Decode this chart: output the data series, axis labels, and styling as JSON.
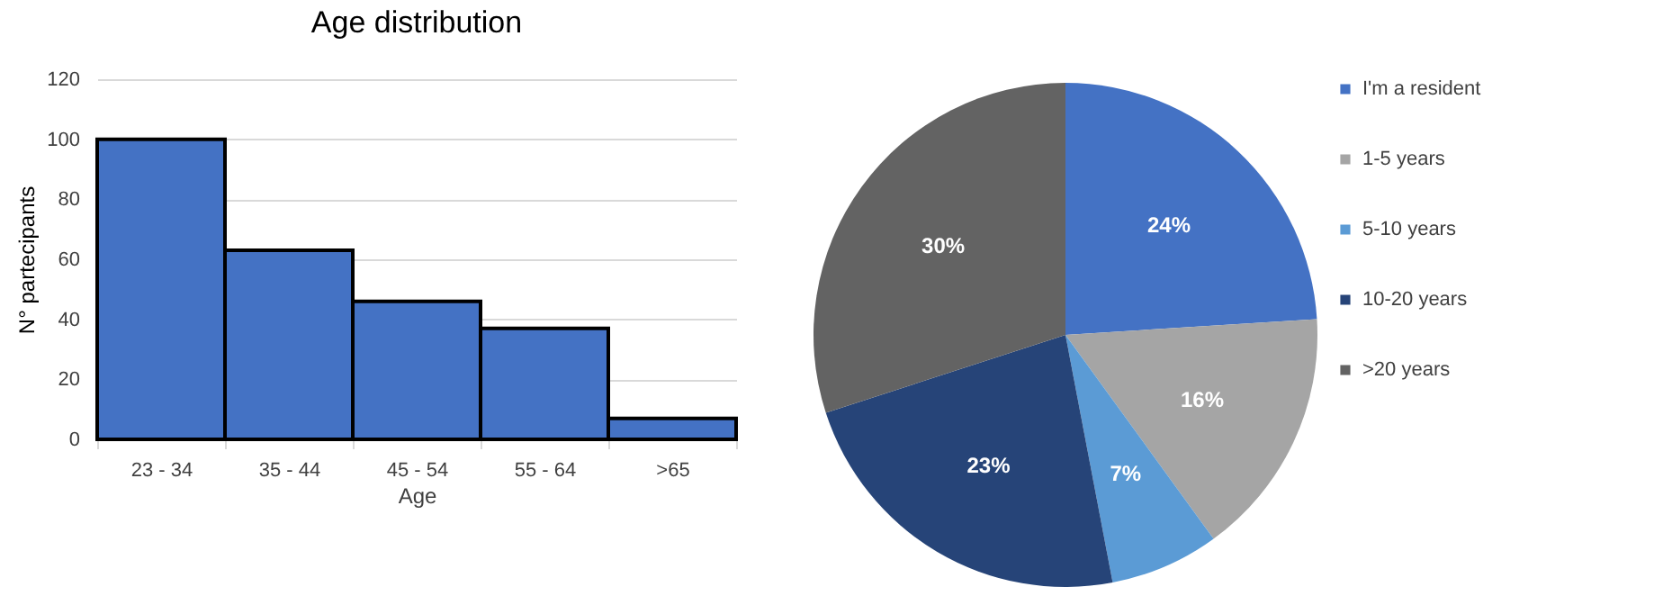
{
  "chart_data": [
    {
      "type": "bar",
      "title": "Age distribution",
      "xlabel": "Age",
      "ylabel": "N° partecipants",
      "categories": [
        "23 - 34",
        "35 - 44",
        "45 - 54",
        "55 - 64",
        ">65",
        null
      ],
      "values": [
        100,
        63,
        46,
        37,
        7,
        null
      ],
      "color": "#4472c4",
      "ylim": [
        0,
        120
      ],
      "yticks": [
        0,
        20,
        40,
        60,
        80,
        100,
        120
      ],
      "grid": "y"
    },
    {
      "type": "pie",
      "categories": [
        "I'm a resident",
        "1-5 years",
        "5-10 years",
        "10-20 years",
        ">20 years"
      ],
      "values": [
        24,
        16,
        7,
        23,
        30
      ],
      "colors": [
        "#4472c4",
        "#a5a5a5",
        "#5b9bd5",
        "#264478",
        "#636363"
      ],
      "value_labels": [
        "24%",
        "16%",
        "7%",
        "23%",
        "30%"
      ],
      "legend": "right"
    }
  ]
}
